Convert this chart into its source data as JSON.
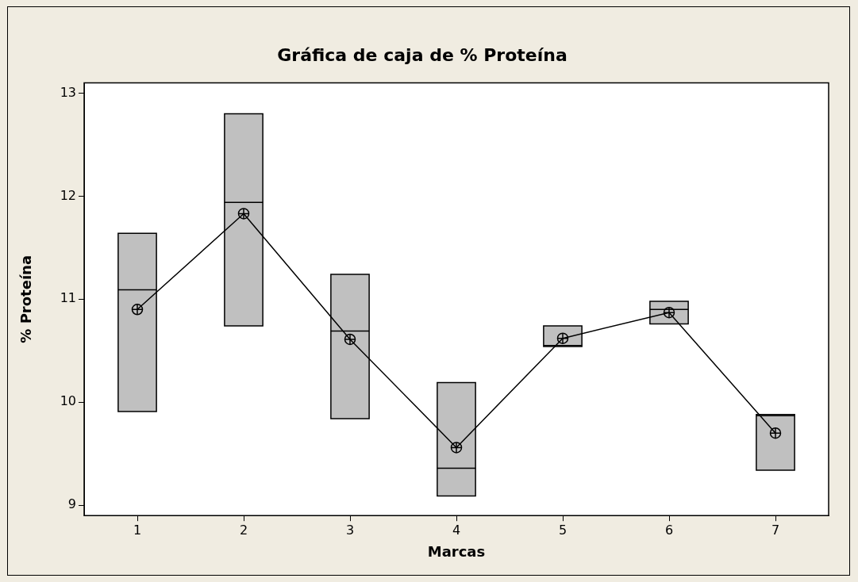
{
  "chart_data": {
    "type": "box",
    "title": "Gráfica de caja de % Proteína",
    "xlabel": "Marcas",
    "ylabel": "% Proteína",
    "categories": [
      "1",
      "2",
      "3",
      "4",
      "5",
      "6",
      "7"
    ],
    "color": "#c0c0c0",
    "boxes": [
      {
        "low": 9.91,
        "q1": 9.91,
        "median": 11.09,
        "q3": 11.64,
        "high": 11.64
      },
      {
        "low": 10.74,
        "q1": 10.74,
        "median": 11.94,
        "q3": 12.8,
        "high": 12.8
      },
      {
        "low": 9.84,
        "q1": 9.84,
        "median": 10.69,
        "q3": 11.24,
        "high": 11.24
      },
      {
        "low": 9.09,
        "q1": 9.09,
        "median": 9.36,
        "q3": 10.19,
        "high": 10.19
      },
      {
        "low": 10.54,
        "q1": 10.54,
        "median": 10.55,
        "q3": 10.74,
        "high": 10.74
      },
      {
        "low": 10.76,
        "q1": 10.76,
        "median": 10.9,
        "q3": 10.98,
        "high": 10.98
      },
      {
        "low": 9.34,
        "q1": 9.34,
        "median": 9.87,
        "q3": 9.88,
        "high": 9.88
      }
    ],
    "series": [
      {
        "type": "line",
        "color": "#000000",
        "values": [
          10.9,
          11.83,
          10.61,
          9.56,
          10.62,
          10.87,
          9.7
        ]
      }
    ],
    "marker": "circle",
    "line_style": "solid",
    "ylim": [
      8.9,
      13.1
    ],
    "yticks": [
      9,
      10,
      11,
      12,
      13
    ],
    "grid": false,
    "legend": false
  }
}
